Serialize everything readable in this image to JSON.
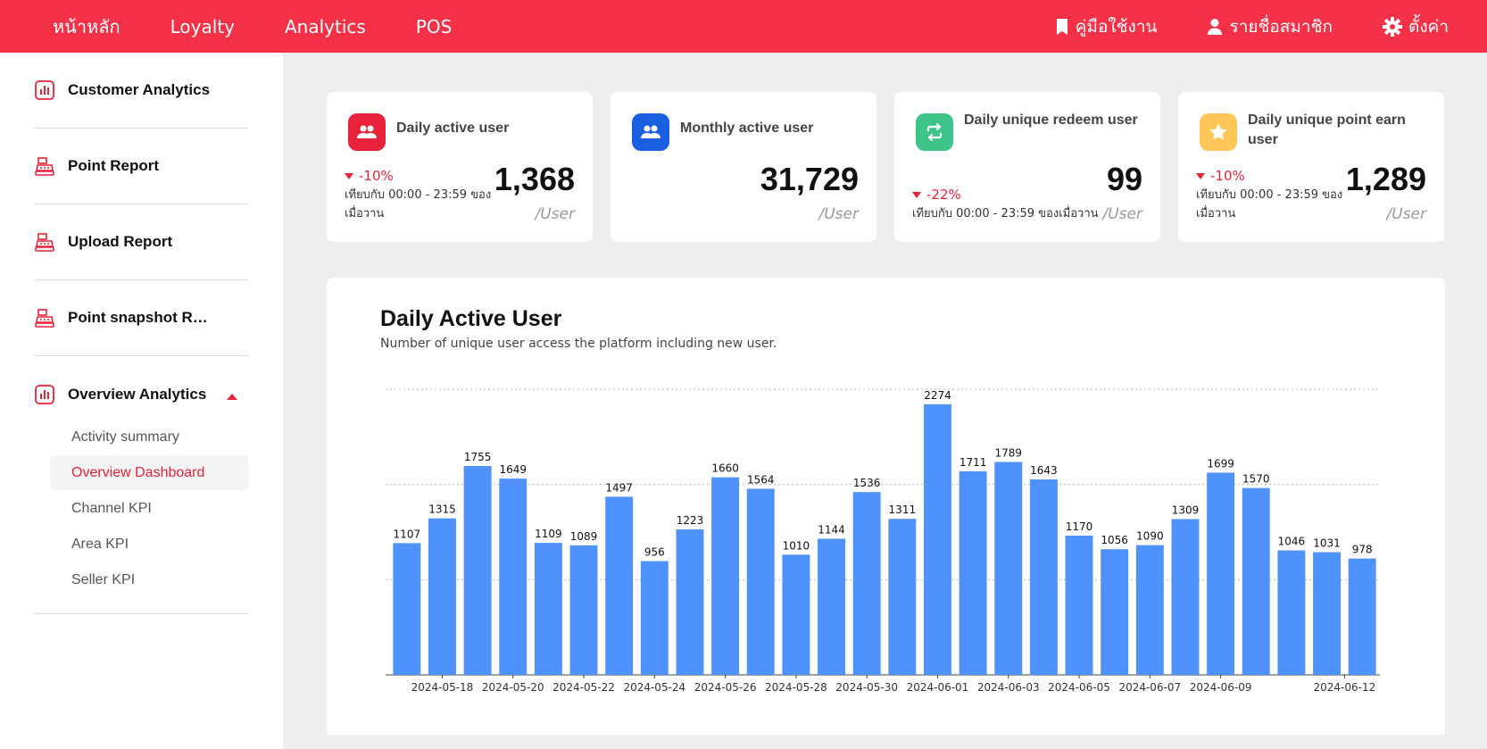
{
  "topnav": {
    "left": [
      "หน้าหลัก",
      "Loyalty",
      "Analytics",
      "POS"
    ],
    "right": [
      {
        "icon": "bookmark-icon",
        "label": "คู่มือใช้งาน"
      },
      {
        "icon": "user-icon",
        "label": "รายชื่อสมาชิก"
      },
      {
        "icon": "gear-icon",
        "label": "ตั้งค่า"
      }
    ],
    "color": "#f53148"
  },
  "sidebar": {
    "items": [
      {
        "icon": "analytics-chart-icon",
        "label": "Customer Analytics"
      },
      {
        "icon": "cash-register-icon",
        "label": "Point Report"
      },
      {
        "icon": "cash-register-icon",
        "label": "Upload Report"
      },
      {
        "icon": "cash-register-icon",
        "label": "Point snapshot Report"
      },
      {
        "icon": "analytics-chart-icon",
        "label": "Overview Analytics"
      }
    ],
    "subitems": [
      "Activity summary",
      "Overview Dashboard",
      "Channel KPI",
      "Area KPI",
      "Seller KPI"
    ],
    "active_subitem": "Overview Dashboard"
  },
  "cards": [
    {
      "icon": "users-icon",
      "icon_color": "#e8223a",
      "title": "Daily active user",
      "delta": "-10%",
      "compare": "เทียบกับ 00:00 - 23:59 ของเมื่อวาน",
      "value": "1,368",
      "unit": "/User"
    },
    {
      "icon": "users-icon",
      "icon_color": "#1a5fe0",
      "title": "Monthly active user",
      "delta": "",
      "compare": "",
      "value": "31,729",
      "unit": "/User"
    },
    {
      "icon": "repeat-icon",
      "icon_color": "#3ec489",
      "title": "Daily unique redeem user",
      "delta": "-22%",
      "compare": "เทียบกับ 00:00 - 23:59 ของเมื่อวาน",
      "value": "99",
      "unit": "/User"
    },
    {
      "icon": "star-icon",
      "icon_color": "#ffc75a",
      "title": "Daily unique point earn user",
      "delta": "-10%",
      "compare": "เทียบกับ 00:00 - 23:59 ของเมื่อวาน",
      "value": "1,289",
      "unit": "/User"
    }
  ],
  "panel": {
    "title": "Daily Active User",
    "subtitle": "Number of unique user access the platform including new user."
  },
  "chart_data": {
    "type": "bar",
    "title": "Daily Active User",
    "values": [
      1107,
      1315,
      1755,
      1649,
      1109,
      1089,
      1497,
      956,
      1223,
      1660,
      1564,
      1010,
      1144,
      1536,
      1311,
      2274,
      1711,
      1789,
      1643,
      1170,
      1056,
      1090,
      1309,
      1699,
      1570,
      1046,
      1031,
      978
    ],
    "x_tick_labels": [
      "2024-05-18",
      "2024-05-20",
      "2024-05-22",
      "2024-05-24",
      "2024-05-26",
      "2024-05-28",
      "2024-05-30",
      "2024-06-01",
      "2024-06-03",
      "2024-06-05",
      "2024-06-07",
      "2024-06-09",
      "2024-06-12"
    ],
    "x_tick_bar_index": [
      1.5,
      3.5,
      5.5,
      7.5,
      9.5,
      11.5,
      13.5,
      15.5,
      17.5,
      19.5,
      21.5,
      23.5,
      27
    ],
    "ylim": [
      0,
      2400
    ],
    "grid": true,
    "bar_color": "#5092fc"
  }
}
